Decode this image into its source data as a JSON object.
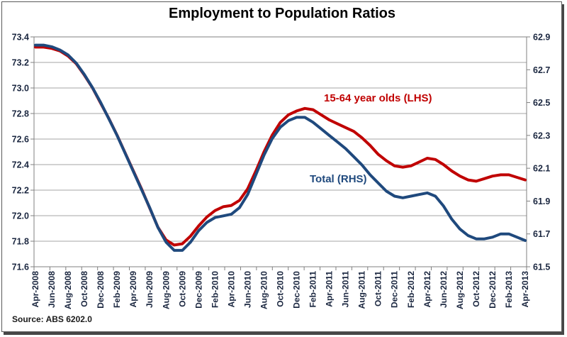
{
  "title": "Employment to Population Ratios",
  "source": "Source: ABS 6202.0",
  "series_labels": {
    "lhs": "15-64 year olds (LHS)",
    "rhs": "Total (RHS)"
  },
  "colors": {
    "lhs_line": "#C00000",
    "rhs_line": "#1F497D",
    "grid": "#A6A6A6",
    "axis": "#808080",
    "axis_text": "#1B2740",
    "title_text": "#000000",
    "frame_border": "#595959",
    "frame_shadow": "#474747",
    "background": "#FFFFFF"
  },
  "chart_data": {
    "type": "line",
    "title": "Employment to Population Ratios",
    "source": "Source: ABS 6202.0",
    "grid": "horizontal",
    "legend_position": "inline-labels",
    "x": [
      "Apr-2008",
      "May-2008",
      "Jun-2008",
      "Jul-2008",
      "Aug-2008",
      "Sep-2008",
      "Oct-2008",
      "Nov-2008",
      "Dec-2008",
      "Jan-2009",
      "Feb-2009",
      "Mar-2009",
      "Apr-2009",
      "May-2009",
      "Jun-2009",
      "Jul-2009",
      "Aug-2009",
      "Sep-2009",
      "Oct-2009",
      "Nov-2009",
      "Dec-2009",
      "Jan-2010",
      "Feb-2010",
      "Mar-2010",
      "Apr-2010",
      "May-2010",
      "Jun-2010",
      "Jul-2010",
      "Aug-2010",
      "Sep-2010",
      "Oct-2010",
      "Nov-2010",
      "Dec-2010",
      "Jan-2011",
      "Feb-2011",
      "Mar-2011",
      "Apr-2011",
      "May-2011",
      "Jun-2011",
      "Jul-2011",
      "Aug-2011",
      "Sep-2011",
      "Oct-2011",
      "Nov-2011",
      "Dec-2011",
      "Jan-2012",
      "Feb-2012",
      "Mar-2012",
      "Apr-2012",
      "May-2012",
      "Jun-2012",
      "Jul-2012",
      "Aug-2012",
      "Sep-2012",
      "Oct-2012",
      "Nov-2012",
      "Dec-2012",
      "Jan-2013",
      "Feb-2013",
      "Mar-2013",
      "Apr-2013"
    ],
    "x_tick_labels": [
      "Apr-2008",
      "Jun-2008",
      "Aug-2008",
      "Oct-2008",
      "Dec-2008",
      "Feb-2009",
      "Apr-2009",
      "Jun-2009",
      "Aug-2009",
      "Oct-2009",
      "Dec-2009",
      "Feb-2010",
      "Apr-2010",
      "Jun-2010",
      "Aug-2010",
      "Oct-2010",
      "Dec-2010",
      "Feb-2011",
      "Apr-2011",
      "Jun-2011",
      "Aug-2011",
      "Oct-2011",
      "Dec-2011",
      "Feb-2012",
      "Apr-2012",
      "Jun-2012",
      "Aug-2012",
      "Oct-2012",
      "Dec-2012",
      "Feb-2013",
      "Apr-2013"
    ],
    "axes": {
      "left": {
        "min": 71.6,
        "max": 73.4,
        "step": 0.2,
        "ticks": [
          "73.4",
          "73.2",
          "73.0",
          "72.8",
          "72.6",
          "72.4",
          "72.2",
          "72.0",
          "71.8",
          "71.6"
        ]
      },
      "right": {
        "min": 61.5,
        "max": 62.9,
        "step": 0.2,
        "ticks": [
          "62.9",
          "62.7",
          "62.5",
          "62.3",
          "62.1",
          "61.9",
          "61.7",
          "61.5"
        ]
      }
    },
    "series": [
      {
        "name": "15-64 year olds (LHS)",
        "axis": "left",
        "color": "#C00000",
        "values": [
          73.32,
          73.32,
          73.31,
          73.29,
          73.25,
          73.19,
          73.1,
          73.0,
          72.88,
          72.76,
          72.63,
          72.49,
          72.35,
          72.21,
          72.06,
          71.91,
          71.81,
          71.77,
          71.78,
          71.84,
          71.92,
          71.99,
          72.04,
          72.07,
          72.08,
          72.12,
          72.21,
          72.35,
          72.5,
          72.63,
          72.73,
          72.79,
          72.82,
          72.84,
          72.83,
          72.79,
          72.75,
          72.72,
          72.69,
          72.66,
          72.61,
          72.55,
          72.48,
          72.43,
          72.39,
          72.38,
          72.39,
          72.42,
          72.45,
          72.44,
          72.4,
          72.35,
          72.31,
          72.28,
          72.27,
          72.29,
          72.31,
          72.32,
          72.32,
          72.3,
          72.28
        ]
      },
      {
        "name": "Total (RHS)",
        "axis": "right",
        "color": "#1F497D",
        "values": [
          62.85,
          62.85,
          62.84,
          62.82,
          62.79,
          62.74,
          62.67,
          62.59,
          62.5,
          62.4,
          62.3,
          62.19,
          62.08,
          61.97,
          61.86,
          61.74,
          61.65,
          61.6,
          61.6,
          61.65,
          61.72,
          61.77,
          61.8,
          61.81,
          61.82,
          61.86,
          61.94,
          62.06,
          62.18,
          62.28,
          62.35,
          62.39,
          62.41,
          62.41,
          62.38,
          62.34,
          62.3,
          62.26,
          62.22,
          62.17,
          62.12,
          62.06,
          62.01,
          61.96,
          61.93,
          61.92,
          61.93,
          61.94,
          61.95,
          61.93,
          61.87,
          61.79,
          61.73,
          61.69,
          61.67,
          61.67,
          61.68,
          61.7,
          61.7,
          61.68,
          61.66
        ]
      }
    ]
  }
}
